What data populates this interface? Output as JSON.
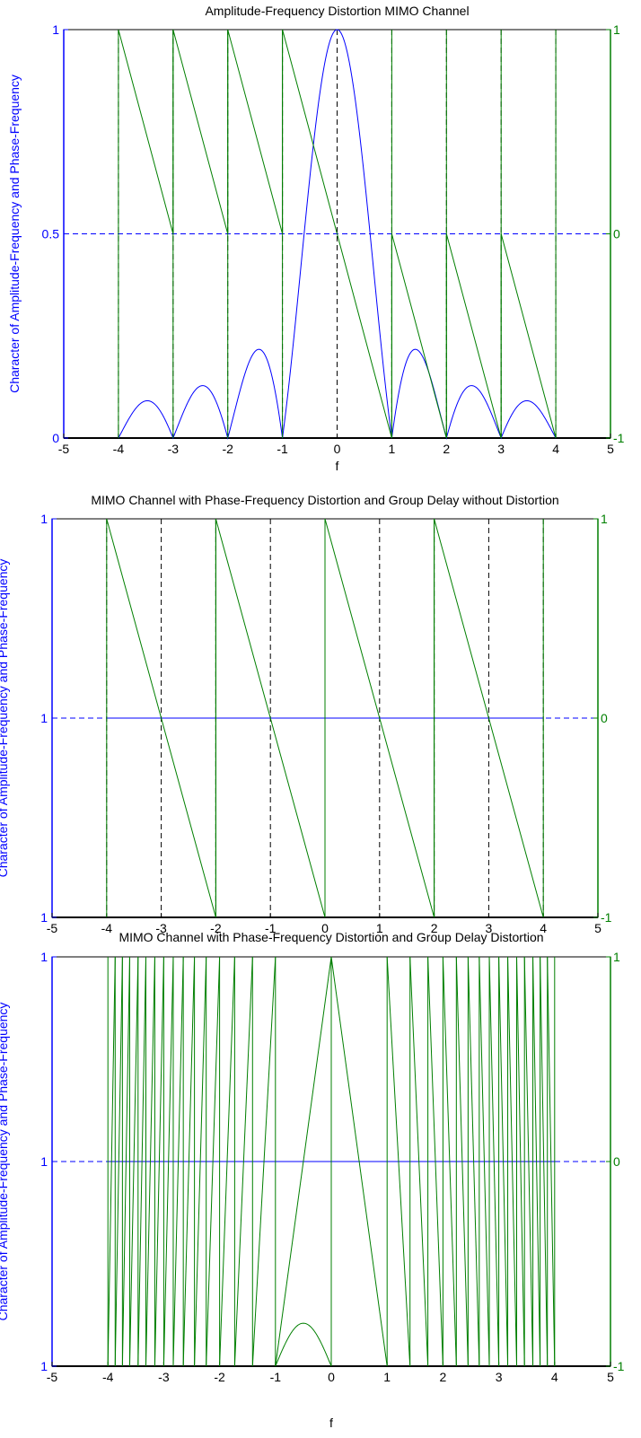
{
  "figure": {
    "colors": {
      "amplitude": "#0000ff",
      "phase": "#007f00",
      "grid": "#000000",
      "axes": "#000000"
    }
  },
  "chart_data": [
    {
      "type": "line",
      "title": "Amplitude-Frequency Distortion MIMO Channel",
      "xlabel": "f",
      "ylabel": "Character of Amplitude-Frequency and Phase-Frequency",
      "xlim": [
        -5,
        5
      ],
      "ylim": [
        0,
        1
      ],
      "y2lim": [
        -1,
        1
      ],
      "xticks": [
        "-5",
        "-4",
        "-3",
        "-2",
        "-1",
        "0",
        "1",
        "2",
        "3",
        "4",
        "5"
      ],
      "yticks": [
        "0",
        "0.5",
        "1"
      ],
      "y2ticks": [
        "-1",
        "0",
        "1"
      ],
      "grid": "dashed vertical lines at integers -4..4, dashed horizontal line at mid-height",
      "series": [
        {
          "axis": "left",
          "color": "#0000ff",
          "description_of_values": "|sinc(f)| on [-4, 4]",
          "x": [
            -4,
            -3.5,
            -3,
            -2.5,
            -2,
            -1.5,
            -1,
            -0.5,
            0,
            0.5,
            1,
            1.5,
            2,
            2.5,
            3,
            3.5,
            4
          ],
          "y": [
            0,
            0.091,
            0,
            0.127,
            0,
            0.212,
            0,
            0.637,
            1,
            0.637,
            0,
            0.212,
            0,
            0.127,
            0,
            0.091,
            0
          ]
        },
        {
          "axis": "right",
          "color": "#007f00",
          "x": [
            -4,
            -3,
            -3,
            -2,
            -2,
            -1,
            -1,
            1,
            1,
            2,
            2,
            3,
            3,
            4
          ],
          "y": [
            1,
            0,
            1,
            0,
            1,
            0,
            1,
            -1,
            0,
            -1,
            0,
            -1,
            0,
            -1
          ],
          "verticals_at_x": [
            -4,
            -3,
            -2,
            -1,
            1,
            2,
            3,
            4
          ]
        }
      ]
    },
    {
      "type": "line",
      "title": "MIMO Channel with Phase-Frequency Distortion and Group Delay without Distortion",
      "xlabel": "",
      "ylabel": "Character of Amplitude-Frequency and Phase-Frequency",
      "xlim": [
        -5,
        5
      ],
      "ylim": [
        0,
        2
      ],
      "y2lim": [
        -1,
        1
      ],
      "xticks": [
        "-5",
        "-4",
        "-3",
        "-2",
        "-1",
        "0",
        "1",
        "2",
        "3",
        "4",
        "5"
      ],
      "yticks": [
        "1",
        "1",
        "1"
      ],
      "y2ticks": [
        "-1",
        "0",
        "1"
      ],
      "grid": "dashed vertical lines at integers -4..4, dashed horizontal line at mid-height",
      "series": [
        {
          "axis": "left",
          "color": "#0000ff",
          "x": [
            -4,
            4
          ],
          "y": [
            1,
            1
          ]
        },
        {
          "axis": "right",
          "color": "#007f00",
          "x": [
            -4,
            -2,
            -2,
            0,
            0,
            2,
            2,
            4
          ],
          "y": [
            1,
            -1,
            1,
            -1,
            1,
            -1,
            1,
            -1
          ],
          "verticals_at_x": [
            -4,
            -2,
            0,
            2,
            4
          ]
        }
      ]
    },
    {
      "type": "line",
      "title": "MIMO Channel with Phase-Frequency Distortion and Group Delay Distortion",
      "xlabel": "f",
      "ylabel": "Character of Amplitude-Frequency and Phase-Frequency",
      "xlim": [
        -5,
        5
      ],
      "ylim": [
        0,
        2
      ],
      "y2lim": [
        -1,
        1
      ],
      "xticks": [
        "-5",
        "-4",
        "-3",
        "-2",
        "-1",
        "0",
        "1",
        "2",
        "3",
        "4",
        "5"
      ],
      "yticks": [
        "1",
        "1",
        "1"
      ],
      "y2ticks": [
        "-1",
        "0",
        "1"
      ],
      "grid": "dashed horizontal line at mid-height",
      "series": [
        {
          "axis": "left",
          "color": "#0000ff",
          "x": [
            -4,
            4
          ],
          "y": [
            1,
            1
          ]
        },
        {
          "axis": "right",
          "color": "#007f00",
          "description_of_values": "wrapped quadratic phase (sawtooth between -1 and 1), chirp-like, wrap at x=0",
          "wrap_points_x": [
            -4,
            -3.87,
            -3.74,
            -3.61,
            -3.46,
            -3.32,
            -3.16,
            -3.0,
            -2.83,
            -2.65,
            -2.45,
            -2.24,
            -2.0,
            -1.73,
            -1.41,
            -1.0,
            0,
            1.0,
            1.41,
            1.73,
            2.0,
            2.24,
            2.45,
            2.65,
            2.83,
            3.0,
            3.16,
            3.32,
            3.46,
            3.61,
            3.74,
            3.87,
            4.0
          ]
        },
        {
          "axis": "left",
          "color": "#007f00",
          "description_of_values": "small green arch near bottom",
          "x": [
            -1,
            -0.75,
            -0.5,
            -0.25,
            0
          ],
          "y": [
            0,
            0.16,
            0.21,
            0.16,
            0
          ]
        }
      ]
    }
  ]
}
